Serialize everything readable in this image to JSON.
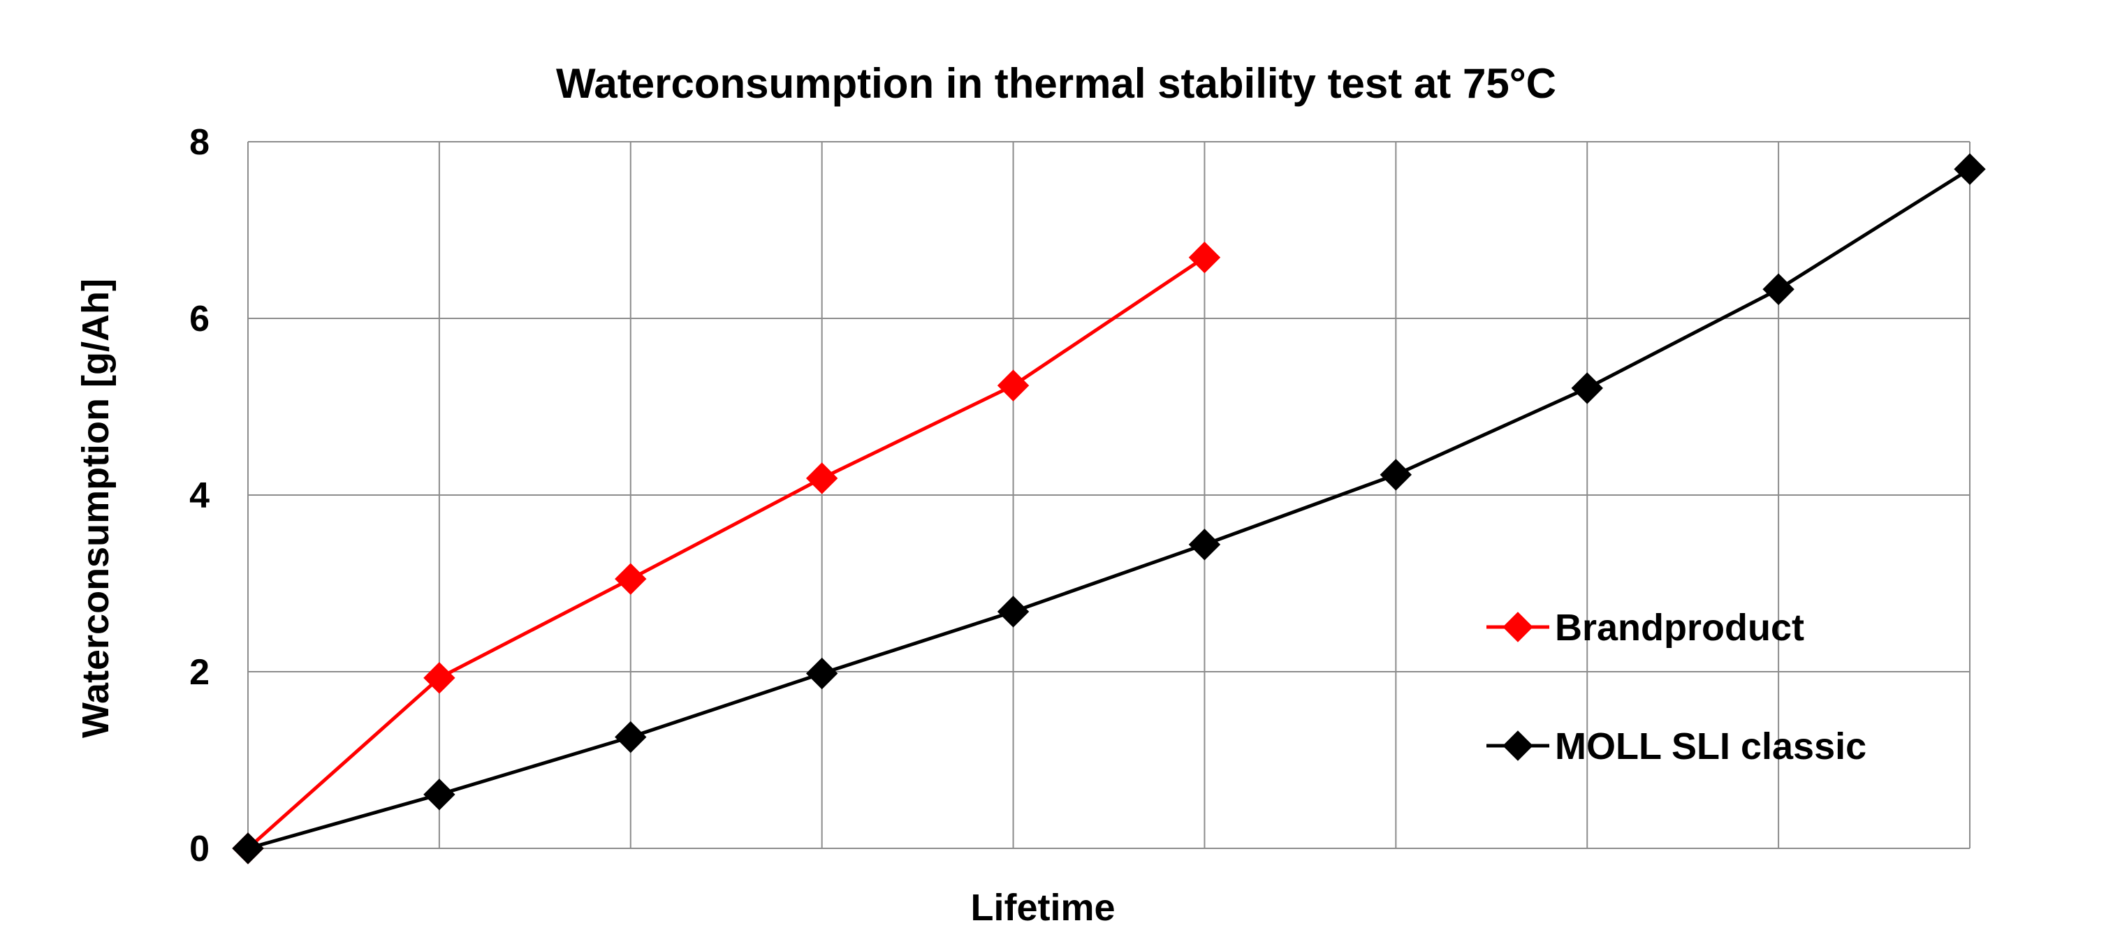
{
  "chart_data": {
    "type": "line",
    "title": "Waterconsumption in thermal stability test at 75°C",
    "xlabel": "Lifetime",
    "ylabel": "Waterconsumption [g/Ah]",
    "ylim": [
      0,
      8
    ],
    "yticks": [
      "0",
      "2",
      "4",
      "6",
      "8"
    ],
    "x": [
      0,
      1,
      2,
      3,
      4,
      5,
      6,
      7,
      8,
      9
    ],
    "xlim": [
      0,
      9
    ],
    "grid": true,
    "legend_position": "right",
    "series": [
      {
        "name": "Brandproduct",
        "color": "#ff0000",
        "marker": "diamond",
        "x": [
          0,
          1,
          2,
          3,
          4,
          5
        ],
        "values": [
          0,
          1.93,
          3.05,
          4.19,
          5.24,
          6.69
        ]
      },
      {
        "name": "MOLL SLI classic",
        "color": "#000000",
        "marker": "diamond",
        "x": [
          0,
          1,
          2,
          3,
          4,
          5,
          6,
          7,
          8,
          9
        ],
        "values": [
          0,
          0.61,
          1.26,
          1.98,
          2.68,
          3.44,
          4.23,
          5.21,
          6.33,
          7.69
        ]
      }
    ]
  }
}
